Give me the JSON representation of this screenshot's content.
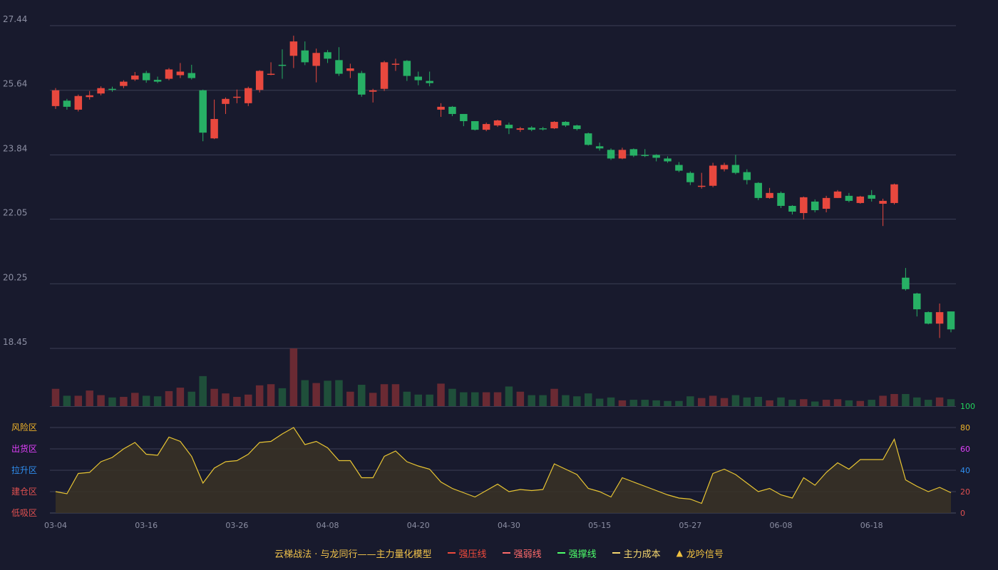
{
  "chart_data": {
    "type": "candlestick",
    "y_ticks": [
      "27.44",
      "25.64",
      "23.84",
      "22.05",
      "20.25",
      "18.45"
    ],
    "ylim": [
      18.45,
      27.44
    ],
    "x_tick_labels": [
      "03-04",
      "03-16",
      "03-26",
      "04-08",
      "04-20",
      "04-30",
      "05-15",
      "05-27",
      "06-08",
      "06-18"
    ],
    "x_tick_indices": [
      0,
      8,
      16,
      24,
      32,
      40,
      48,
      56,
      64,
      72
    ],
    "candles": [
      [
        25.2,
        25.64,
        25.12,
        25.7
      ],
      [
        25.35,
        25.18,
        25.1,
        25.4
      ],
      [
        25.1,
        25.48,
        25.05,
        25.52
      ],
      [
        25.45,
        25.5,
        25.38,
        25.62
      ],
      [
        25.55,
        25.7,
        25.5,
        25.75
      ],
      [
        25.68,
        25.66,
        25.6,
        25.74
      ],
      [
        25.76,
        25.88,
        25.7,
        25.92
      ],
      [
        25.94,
        26.05,
        25.9,
        26.15
      ],
      [
        26.12,
        25.92,
        25.85,
        26.18
      ],
      [
        25.93,
        25.88,
        25.84,
        26.02
      ],
      [
        25.96,
        26.22,
        25.92,
        26.26
      ],
      [
        26.06,
        26.16,
        25.98,
        26.4
      ],
      [
        26.12,
        25.98,
        25.94,
        26.35
      ],
      [
        25.64,
        24.46,
        24.22,
        25.66
      ],
      [
        24.3,
        24.84,
        24.28,
        25.38
      ],
      [
        25.26,
        25.4,
        24.98,
        25.44
      ],
      [
        25.44,
        25.46,
        25.28,
        25.66
      ],
      [
        25.28,
        25.7,
        25.2,
        25.74
      ],
      [
        25.65,
        26.18,
        25.58,
        26.2
      ],
      [
        26.1,
        26.1,
        26.06,
        26.42
      ],
      [
        26.35,
        26.33,
        25.96,
        26.78
      ],
      [
        26.6,
        27.0,
        26.26,
        27.16
      ],
      [
        26.75,
        26.42,
        26.34,
        27.0
      ],
      [
        26.32,
        26.68,
        25.86,
        26.8
      ],
      [
        26.7,
        26.52,
        26.4,
        26.76
      ],
      [
        26.48,
        26.1,
        26.04,
        26.84
      ],
      [
        26.18,
        26.25,
        25.98,
        26.38
      ],
      [
        26.12,
        25.52,
        25.46,
        26.18
      ],
      [
        25.6,
        25.64,
        25.3,
        25.68
      ],
      [
        25.68,
        26.42,
        25.62,
        26.46
      ],
      [
        26.35,
        26.38,
        26.18,
        26.52
      ],
      [
        26.46,
        26.04,
        25.9,
        26.48
      ],
      [
        26.02,
        25.92,
        25.78,
        26.16
      ],
      [
        25.9,
        25.84,
        25.75,
        26.16
      ],
      [
        25.1,
        25.18,
        24.9,
        25.28
      ],
      [
        25.18,
        24.98,
        24.92,
        25.2
      ],
      [
        24.98,
        24.78,
        24.64,
        24.98
      ],
      [
        24.78,
        24.54,
        24.52,
        24.78
      ],
      [
        24.54,
        24.7,
        24.5,
        24.74
      ],
      [
        24.66,
        24.8,
        24.62,
        24.82
      ],
      [
        24.68,
        24.58,
        24.42,
        24.74
      ],
      [
        24.54,
        24.58,
        24.48,
        24.62
      ],
      [
        24.6,
        24.54,
        24.5,
        24.64
      ],
      [
        24.58,
        24.56,
        24.52,
        24.62
      ],
      [
        24.58,
        24.76,
        24.56,
        24.78
      ],
      [
        24.76,
        24.66,
        24.62,
        24.78
      ],
      [
        24.66,
        24.56,
        24.52,
        24.68
      ],
      [
        24.44,
        24.12,
        24.1,
        24.46
      ],
      [
        24.08,
        24.02,
        23.96,
        24.18
      ],
      [
        23.98,
        23.74,
        23.7,
        24.02
      ],
      [
        23.74,
        23.98,
        23.72,
        24.04
      ],
      [
        24.0,
        23.82,
        23.78,
        24.02
      ],
      [
        23.84,
        23.82,
        23.78,
        24.0
      ],
      [
        23.84,
        23.76,
        23.66,
        23.86
      ],
      [
        23.74,
        23.66,
        23.62,
        23.8
      ],
      [
        23.56,
        23.4,
        23.36,
        23.64
      ],
      [
        23.34,
        23.08,
        23.0,
        23.38
      ],
      [
        22.96,
        22.98,
        22.9,
        23.34
      ],
      [
        22.98,
        23.54,
        22.94,
        23.62
      ],
      [
        23.44,
        23.56,
        23.38,
        23.62
      ],
      [
        23.56,
        23.34,
        23.3,
        23.84
      ],
      [
        23.36,
        23.14,
        23.02,
        23.44
      ],
      [
        23.06,
        22.64,
        22.58,
        23.08
      ],
      [
        22.64,
        22.78,
        22.62,
        22.92
      ],
      [
        22.78,
        22.42,
        22.36,
        22.82
      ],
      [
        22.42,
        22.26,
        22.18,
        22.44
      ],
      [
        22.22,
        22.66,
        22.04,
        22.68
      ],
      [
        22.54,
        22.3,
        22.24,
        22.6
      ],
      [
        22.34,
        22.64,
        22.24,
        22.7
      ],
      [
        22.64,
        22.82,
        22.64,
        22.86
      ],
      [
        22.7,
        22.56,
        22.52,
        22.78
      ],
      [
        22.5,
        22.68,
        22.48,
        22.7
      ],
      [
        22.72,
        22.62,
        22.54,
        22.86
      ],
      [
        22.48,
        22.56,
        21.86,
        22.62
      ],
      [
        22.5,
        23.02,
        22.46,
        23.04
      ],
      [
        20.42,
        20.1,
        20.06,
        20.69
      ],
      [
        19.98,
        19.54,
        19.34,
        20.0
      ],
      [
        19.46,
        19.14,
        19.12,
        19.48
      ],
      [
        19.14,
        19.46,
        18.74,
        19.7
      ],
      [
        19.48,
        18.98,
        18.9,
        19.48
      ]
    ],
    "volume_ylim": [
      0,
      100
    ],
    "volumes": [
      30,
      18,
      18,
      27,
      19,
      15,
      16,
      23,
      18,
      17,
      26,
      32,
      25,
      52,
      30,
      22,
      16,
      20,
      36,
      38,
      31,
      100,
      45,
      40,
      44,
      45,
      25,
      37,
      23,
      38,
      38,
      25,
      20,
      20,
      39,
      30,
      24,
      24,
      24,
      24,
      34,
      25,
      19,
      19,
      30,
      19,
      17,
      22,
      13,
      15,
      10,
      11,
      11,
      10,
      9,
      9,
      17,
      14,
      18,
      14,
      19,
      15,
      16,
      10,
      15,
      11,
      12,
      8,
      11,
      12,
      10,
      9,
      11,
      18,
      21,
      21,
      15,
      11,
      15,
      12
    ],
    "indicator": {
      "ylim": [
        0,
        100
      ],
      "right_ticks": [
        "100",
        "80",
        "60",
        "40",
        "20",
        "0"
      ],
      "right_tick_colors": [
        "#22d45c",
        "#f0b429",
        "#e040fb",
        "#2f8ff0",
        "#e05050",
        "#e05050"
      ],
      "zones": [
        {
          "label": "风险区",
          "color": "#f0b429"
        },
        {
          "label": "出货区",
          "color": "#e040fb"
        },
        {
          "label": "拉升区",
          "color": "#2f8ff0"
        },
        {
          "label": "建仓区",
          "color": "#e05050"
        },
        {
          "label": "低吸区",
          "color": "#e05050"
        }
      ],
      "line_color": "#e8c533",
      "values": [
        20,
        18,
        37,
        38,
        48,
        52,
        60,
        66,
        55,
        54,
        71,
        67,
        53,
        28,
        42,
        48,
        49,
        55,
        66,
        67,
        74,
        80,
        64,
        67,
        61,
        49,
        49,
        33,
        33,
        53,
        58,
        48,
        44,
        41,
        29,
        23,
        19,
        15,
        21,
        27,
        20,
        22,
        21,
        22,
        46,
        41,
        36,
        23,
        20,
        15,
        33,
        29,
        25,
        21,
        17,
        14,
        13,
        9,
        37,
        41,
        36,
        28,
        20,
        23,
        17,
        14,
        33,
        26,
        38,
        47,
        41,
        50,
        50,
        50,
        69,
        31,
        25,
        20,
        24,
        19
      ]
    }
  },
  "legend": {
    "model_label": "云梯战法 · 与龙同行——主力量化模型",
    "items": [
      {
        "label": "强压线",
        "color": "#ef4a3c",
        "style": "solid"
      },
      {
        "label": "强弱线",
        "color": "#ff6b6b",
        "style": "dashed"
      },
      {
        "label": "强撑线",
        "color": "#4dff6a",
        "style": "solid"
      },
      {
        "label": "主力成本",
        "color": "#f5d76e",
        "style": "dashed"
      },
      {
        "label": "龙吟信号",
        "color": "#f0c140",
        "style": "triangle"
      }
    ]
  }
}
